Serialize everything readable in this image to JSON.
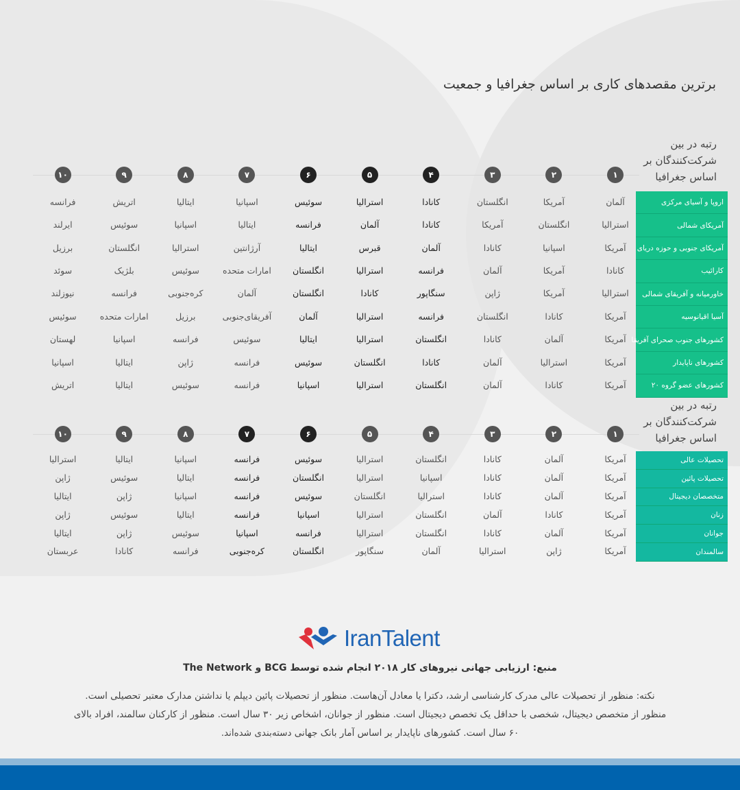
{
  "title": "برترین مقصدهای کاری بر اساس جغرافیا و جمعیت",
  "colors": {
    "green": "#16c08a",
    "teal": "#14b8a0",
    "circle_gray": "#555555",
    "circle_dark": "#222222",
    "brand_blue": "#2065b5",
    "brand_red": "#e0323c",
    "footer_blue": "#0063ae"
  },
  "ranks": [
    "۱",
    "۲",
    "۳",
    "۴",
    "۵",
    "۶",
    "۷",
    "۸",
    "۹",
    "۱۰"
  ],
  "geography": {
    "rank_label": "رتبه در بین شرکت‌کنندگان بر اساس جغرافیا",
    "highlighted_ranks": [
      4,
      5,
      6
    ],
    "rows": [
      {
        "category": "اروپا و آسیای مرکزی",
        "values": [
          "آلمان",
          "آمریکا",
          "انگلستان",
          "کانادا",
          "استرالیا",
          "سوئیس",
          "اسپانیا",
          "ایتالیا",
          "اتریش",
          "فرانسه"
        ]
      },
      {
        "category": "آمریکای شمالی",
        "values": [
          "استرالیا",
          "انگلستان",
          "آمریکا",
          "کانادا",
          "آلمان",
          "فرانسه",
          "ایتالیا",
          "اسپانیا",
          "سوئیس",
          "ایرلند"
        ]
      },
      {
        "category": "آمریکای جنوبی و حوزه دریای",
        "values": [
          "آمریکا",
          "اسپانیا",
          "کانادا",
          "آلمان",
          "قبرس",
          "ایتالیا",
          "آرژانتین",
          "استرالیا",
          "انگلستان",
          "برزیل"
        ]
      },
      {
        "category": "کارائیب",
        "values": [
          "کانادا",
          "آمریکا",
          "آلمان",
          "فرانسه",
          "استرالیا",
          "انگلستان",
          "امارات متحده",
          "سوئیس",
          "بلژیک",
          "سوئد"
        ]
      },
      {
        "category": "خاورمیانه و آفریقای شمالی",
        "values": [
          "استرالیا",
          "آمریکا",
          "ژاپن",
          "سنگاپور",
          "کانادا",
          "انگلستان",
          "آلمان",
          "کره‌جنوبی",
          "فرانسه",
          "نیوزلند"
        ]
      },
      {
        "category": "آسیا اقیانوسیه",
        "values": [
          "آمریکا",
          "کانادا",
          "انگلستان",
          "فرانسه",
          "استرالیا",
          "آلمان",
          "آفریقای‌جنوبی",
          "برزیل",
          "امارات متحده",
          "سوئیس"
        ]
      },
      {
        "category": "کشورهای جنوب صحرای آفریقا",
        "values": [
          "آمریکا",
          "آلمان",
          "کانادا",
          "انگلستان",
          "استرالیا",
          "ایتالیا",
          "سوئیس",
          "فرانسه",
          "اسپانیا",
          "لهستان"
        ]
      },
      {
        "category": "کشورهای ناپایدار",
        "values": [
          "آمریکا",
          "استرالیا",
          "آلمان",
          "کانادا",
          "انگلستان",
          "سوئیس",
          "فرانسه",
          "ژاپن",
          "ایتالیا",
          "اسپانیا"
        ]
      },
      {
        "category": "کشورهای عضو گروه ۲۰",
        "values": [
          "آمریکا",
          "کانادا",
          "آلمان",
          "انگلستان",
          "استرالیا",
          "اسپانیا",
          "فرانسه",
          "سوئیس",
          "ایتالیا",
          "اتریش"
        ]
      }
    ]
  },
  "demographics": {
    "rank_label": "رتبه در بین شرکت‌کنندگان بر اساس جغرافیا",
    "highlighted_ranks": [
      6,
      7
    ],
    "rows": [
      {
        "category": "تحصیلات عالی",
        "values": [
          "آمریکا",
          "آلمان",
          "کانادا",
          "انگلستان",
          "استرالیا",
          "سوئیس",
          "فرانسه",
          "اسپانیا",
          "ایتالیا",
          "استرالیا"
        ]
      },
      {
        "category": "تحصیلات پائین",
        "values": [
          "آمریکا",
          "آلمان",
          "کانادا",
          "اسپانیا",
          "استرالیا",
          "انگلستان",
          "فرانسه",
          "ایتالیا",
          "سوئیس",
          "ژاپن"
        ]
      },
      {
        "category": "متخصصان دیجیتال",
        "values": [
          "آمریکا",
          "آلمان",
          "کانادا",
          "استرالیا",
          "انگلستان",
          "سوئیس",
          "فرانسه",
          "اسپانیا",
          "ژاپن",
          "ایتالیا"
        ]
      },
      {
        "category": "زنان",
        "values": [
          "آمریکا",
          "کانادا",
          "آلمان",
          "انگلستان",
          "استرالیا",
          "اسپانیا",
          "فرانسه",
          "ایتالیا",
          "سوئیس",
          "ژاپن"
        ]
      },
      {
        "category": "جوانان",
        "values": [
          "آمریکا",
          "آلمان",
          "کانادا",
          "انگلستان",
          "استرالیا",
          "فرانسه",
          "اسپانیا",
          "سوئیس",
          "ژاپن",
          "ایتالیا"
        ]
      },
      {
        "category": "سالمندان",
        "values": [
          "آمریکا",
          "ژاپن",
          "استرالیا",
          "آلمان",
          "سنگاپور",
          "انگلستان",
          "کره‌جنوبی",
          "فرانسه",
          "کانادا",
          "عربستان"
        ]
      }
    ]
  },
  "logo": {
    "text": "IranTalent"
  },
  "source": "منبع: ارزیابی جهانی نیروهای کار ۲۰۱۸ انجام شده توسط BCG و The Network",
  "note_lines": [
    "نکته: منظور از تحصیلات عالی مدرک کارشناسی ارشد، دکترا یا معادل آن‌هاست. منظور از تحصیلات پائین دیپلم یا نداشتن مدارک معتبر تحصیلی است.",
    "منظور از متخصص دیجیتال، شخصی با حداقل یک تخصص دیجیتال است. منظور از جوانان، اشخاص زیر ۳۰ سال است. منظور از کارکنان سالمند، افراد بالای",
    "۶۰ سال است. کشورهای ناپایدار بر اساس آمار بانک جهانی دسته‌بندی شده‌اند."
  ]
}
